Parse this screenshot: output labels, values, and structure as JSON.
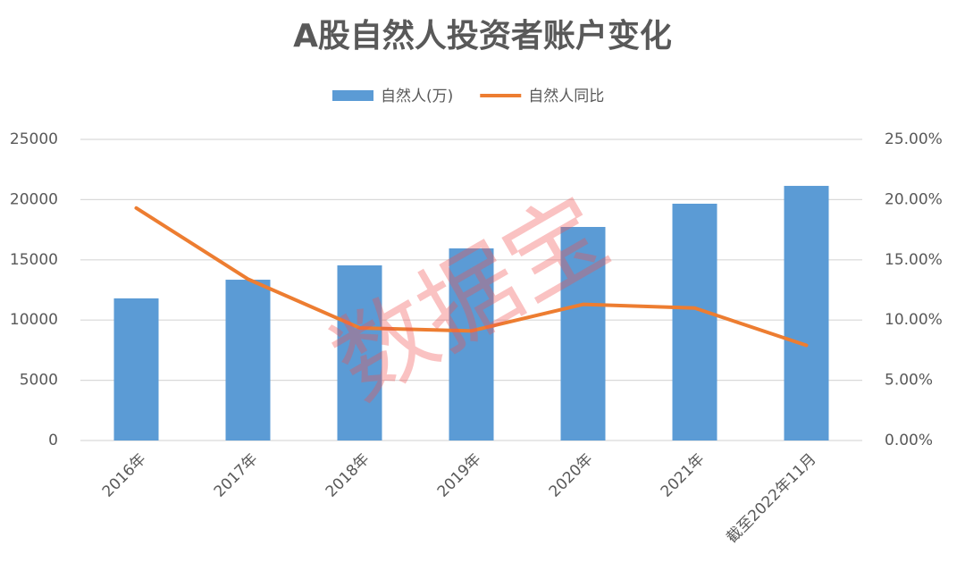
{
  "chart_data": {
    "type": "bar-line",
    "title": "A股自然人投资者账户变化",
    "watermark": "数据宝",
    "categories": [
      "2016年",
      "2017年",
      "2018年",
      "2019年",
      "2020年",
      "2021年",
      "截至2022年11月"
    ],
    "series": [
      {
        "name": "自然人(万)",
        "type": "bar",
        "color": "#5b9bd5",
        "values": [
          11800,
          13350,
          14540,
          15950,
          17730,
          19660,
          21140
        ]
      },
      {
        "name": "自然人同比",
        "type": "line",
        "color": "#ed7d31",
        "axis": "y2",
        "values": [
          19.3,
          13.4,
          9.35,
          9.1,
          11.3,
          11.0,
          7.9
        ]
      }
    ],
    "ylim": [
      0,
      25000
    ],
    "yticks": [
      0,
      5000,
      10000,
      15000,
      20000,
      25000
    ],
    "y2lim": [
      0,
      25
    ],
    "y2ticks": [
      {
        "value": 0,
        "label": "0.00%"
      },
      {
        "value": 5,
        "label": "5.00%"
      },
      {
        "value": 10,
        "label": "10.00%"
      },
      {
        "value": 15,
        "label": "15.00%"
      },
      {
        "value": 20,
        "label": "20.00%"
      },
      {
        "value": 25,
        "label": "25.00%"
      }
    ],
    "grid": true,
    "legend": "top"
  }
}
